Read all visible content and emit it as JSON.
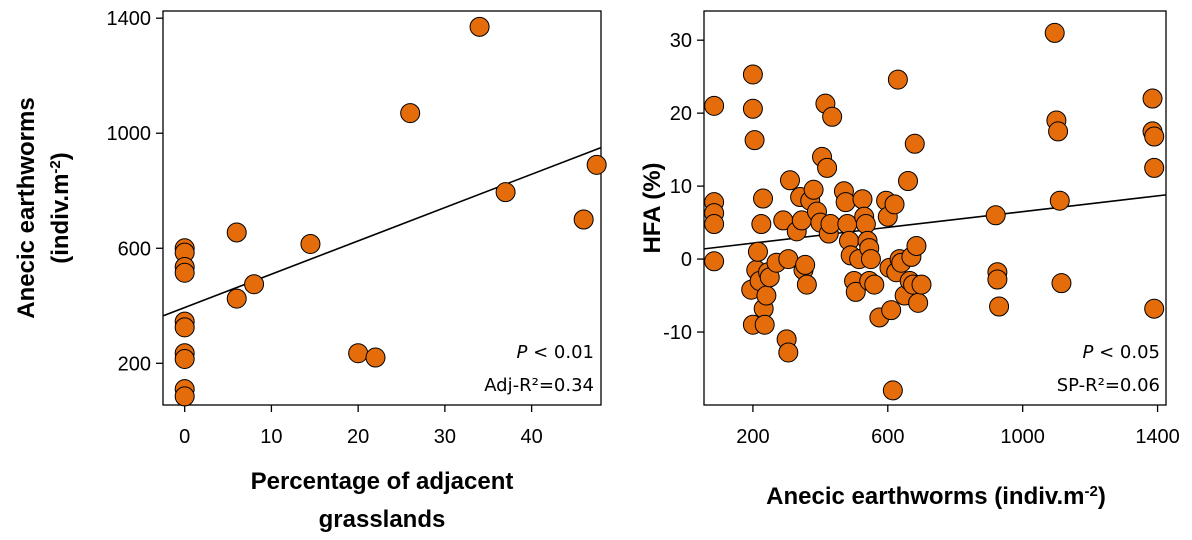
{
  "chart_data": [
    {
      "type": "scatter",
      "xlabel": "Percentage of adjacent grasslands",
      "ylabel": "Anecic earthworms (indiv.m-2)",
      "ylabel_line1": "Anecic earthworms",
      "ylabel_line2_main": "(indiv.m",
      "ylabel_line2_sup": "-2",
      "ylabel_line2_end": ")",
      "xlabel_line1": "Percentage of adjacent",
      "xlabel_line2": "grasslands",
      "xlim": [
        -2.5,
        48
      ],
      "ylim": [
        55,
        1425
      ],
      "xticks": [
        0,
        10,
        20,
        30,
        40
      ],
      "yticks": [
        200,
        600,
        1000,
        1400
      ],
      "x": [
        0,
        0,
        0,
        0,
        0,
        0,
        0,
        0,
        0,
        0,
        6,
        6,
        8,
        14.5,
        20,
        22,
        26,
        34,
        37,
        46,
        47.5
      ],
      "y": [
        600,
        585,
        535,
        515,
        345,
        325,
        235,
        215,
        110,
        85,
        655,
        425,
        475,
        615,
        235,
        220,
        1070,
        1370,
        795,
        700,
        890
      ],
      "marker_color": "#E46C0A",
      "regression": {
        "x": [
          -2.5,
          48
        ],
        "y": [
          365,
          950
        ]
      },
      "annotation": {
        "p_symbol": "P",
        "p_text": " < 0.01",
        "r2": "Adj-R²=0.34"
      }
    },
    {
      "type": "scatter",
      "xlabel": "Anecic earthworms (indiv.m-2)",
      "xlabel_main": "Anecic earthworms (indiv.m",
      "xlabel_sup": "-2",
      "xlabel_end": ")",
      "ylabel": "HFA (%)",
      "xlim": [
        55,
        1425
      ],
      "ylim": [
        -20,
        34
      ],
      "xticks": [
        200,
        600,
        1000,
        1400
      ],
      "yticks": [
        -10,
        0,
        10,
        20,
        30
      ],
      "x": [
        85,
        85,
        85,
        85,
        85,
        195,
        200,
        200,
        200,
        205,
        210,
        215,
        220,
        225,
        230,
        232,
        235,
        240,
        245,
        250,
        270,
        290,
        300,
        305,
        305,
        310,
        330,
        340,
        345,
        350,
        355,
        360,
        370,
        380,
        390,
        400,
        405,
        415,
        420,
        425,
        430,
        435,
        470,
        475,
        480,
        485,
        490,
        500,
        505,
        515,
        525,
        530,
        535,
        540,
        545,
        545,
        550,
        560,
        575,
        595,
        600,
        605,
        610,
        615,
        620,
        625,
        630,
        635,
        640,
        650,
        660,
        665,
        670,
        675,
        680,
        685,
        690,
        700,
        920,
        925,
        925,
        930,
        1095,
        1100,
        1105,
        1110,
        1115,
        1385,
        1385,
        1390,
        1390,
        1390
      ],
      "y": [
        21,
        7.8,
        6.3,
        4.8,
        -0.3,
        -4.2,
        -9,
        20.6,
        25.3,
        16.3,
        -1.5,
        1,
        -3,
        4.8,
        8.3,
        -6.8,
        -9,
        -5,
        -1.8,
        -2.5,
        -0.5,
        5.3,
        -11,
        -12.8,
        0,
        10.8,
        3.8,
        8.5,
        5.3,
        -1.5,
        -0.8,
        -3.5,
        8,
        9.5,
        6.5,
        5,
        14,
        21.3,
        12.5,
        3.5,
        4.8,
        19.5,
        9.3,
        7.8,
        4.8,
        2.5,
        0.5,
        -3,
        -4.5,
        0,
        8.2,
        5.8,
        4.8,
        2.5,
        1.5,
        -3,
        0,
        -3.5,
        -8,
        8,
        5.8,
        -1.2,
        -7,
        -18,
        7.5,
        -1.8,
        24.6,
        0,
        -0.5,
        -5,
        10.7,
        -3,
        0.3,
        -3.5,
        15.8,
        1.8,
        -6,
        -3.5,
        6,
        -1.8,
        -2.8,
        -6.5,
        31,
        19,
        17.5,
        8,
        -3.3,
        22,
        17.5,
        16.8,
        12.5,
        -6.8
      ],
      "marker_color": "#E46C0A",
      "regression": {
        "x": [
          55,
          1425
        ],
        "y": [
          1.4,
          8.8
        ]
      },
      "annotation": {
        "p_symbol": "P",
        "p_text": " < 0.05",
        "r2": "SP-R²=0.06"
      }
    }
  ]
}
